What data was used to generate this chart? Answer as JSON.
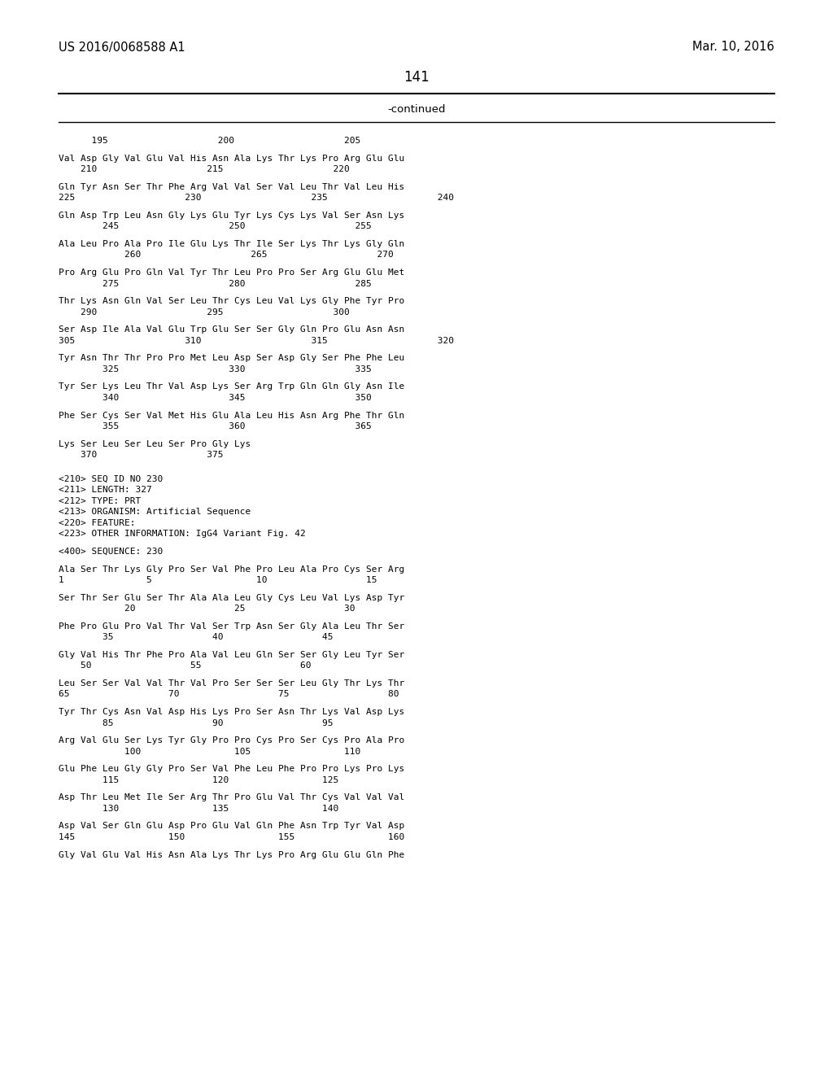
{
  "patent_left": "US 2016/0068588 A1",
  "patent_right": "Mar. 10, 2016",
  "page_number": "141",
  "continued_label": "-continued",
  "background_color": "#ffffff",
  "text_color": "#000000",
  "lines": [
    "      195                    200                    205",
    "",
    "Val Asp Gly Val Glu Val His Asn Ala Lys Thr Lys Pro Arg Glu Glu",
    "    210                    215                    220",
    "",
    "Gln Tyr Asn Ser Thr Phe Arg Val Val Ser Val Leu Thr Val Leu His",
    "225                    230                    235                    240",
    "",
    "Gln Asp Trp Leu Asn Gly Lys Glu Tyr Lys Cys Lys Val Ser Asn Lys",
    "        245                    250                    255",
    "",
    "Ala Leu Pro Ala Pro Ile Glu Lys Thr Ile Ser Lys Thr Lys Gly Gln",
    "            260                    265                    270",
    "",
    "Pro Arg Glu Pro Gln Val Tyr Thr Leu Pro Pro Ser Arg Glu Glu Met",
    "        275                    280                    285",
    "",
    "Thr Lys Asn Gln Val Ser Leu Thr Cys Leu Val Lys Gly Phe Tyr Pro",
    "    290                    295                    300",
    "",
    "Ser Asp Ile Ala Val Glu Trp Glu Ser Ser Gly Gln Pro Glu Asn Asn",
    "305                    310                    315                    320",
    "",
    "Tyr Asn Thr Thr Pro Pro Met Leu Asp Ser Asp Gly Ser Phe Phe Leu",
    "        325                    330                    335",
    "",
    "Tyr Ser Lys Leu Thr Val Asp Lys Ser Arg Trp Gln Gln Gly Asn Ile",
    "        340                    345                    350",
    "",
    "Phe Ser Cys Ser Val Met His Glu Ala Leu His Asn Arg Phe Thr Gln",
    "        355                    360                    365",
    "",
    "Lys Ser Leu Ser Leu Ser Pro Gly Lys",
    "    370                    375",
    "",
    "",
    "<210> SEQ ID NO 230",
    "<211> LENGTH: 327",
    "<212> TYPE: PRT",
    "<213> ORGANISM: Artificial Sequence",
    "<220> FEATURE:",
    "<223> OTHER INFORMATION: IgG4 Variant Fig. 42",
    "",
    "<400> SEQUENCE: 230",
    "",
    "Ala Ser Thr Lys Gly Pro Ser Val Phe Pro Leu Ala Pro Cys Ser Arg",
    "1               5                   10                  15",
    "",
    "Ser Thr Ser Glu Ser Thr Ala Ala Leu Gly Cys Leu Val Lys Asp Tyr",
    "            20                  25                  30",
    "",
    "Phe Pro Glu Pro Val Thr Val Ser Trp Asn Ser Gly Ala Leu Thr Ser",
    "        35                  40                  45",
    "",
    "Gly Val His Thr Phe Pro Ala Val Leu Gln Ser Ser Gly Leu Tyr Ser",
    "    50                  55                  60",
    "",
    "Leu Ser Ser Val Val Thr Val Pro Ser Ser Ser Leu Gly Thr Lys Thr",
    "65                  70                  75                  80",
    "",
    "Tyr Thr Cys Asn Val Asp His Lys Pro Ser Asn Thr Lys Val Asp Lys",
    "        85                  90                  95",
    "",
    "Arg Val Glu Ser Lys Tyr Gly Pro Pro Cys Pro Ser Cys Pro Ala Pro",
    "            100                 105                 110",
    "",
    "Glu Phe Leu Gly Gly Pro Ser Val Phe Leu Phe Pro Pro Lys Pro Lys",
    "        115                 120                 125",
    "",
    "Asp Thr Leu Met Ile Ser Arg Thr Pro Glu Val Thr Cys Val Val Val",
    "        130                 135                 140",
    "",
    "Asp Val Ser Gln Glu Asp Pro Glu Val Gln Phe Asn Trp Tyr Val Asp",
    "145                 150                 155                 160",
    "",
    "Gly Val Glu Val His Asn Ala Lys Thr Lys Pro Arg Glu Glu Gln Phe"
  ]
}
